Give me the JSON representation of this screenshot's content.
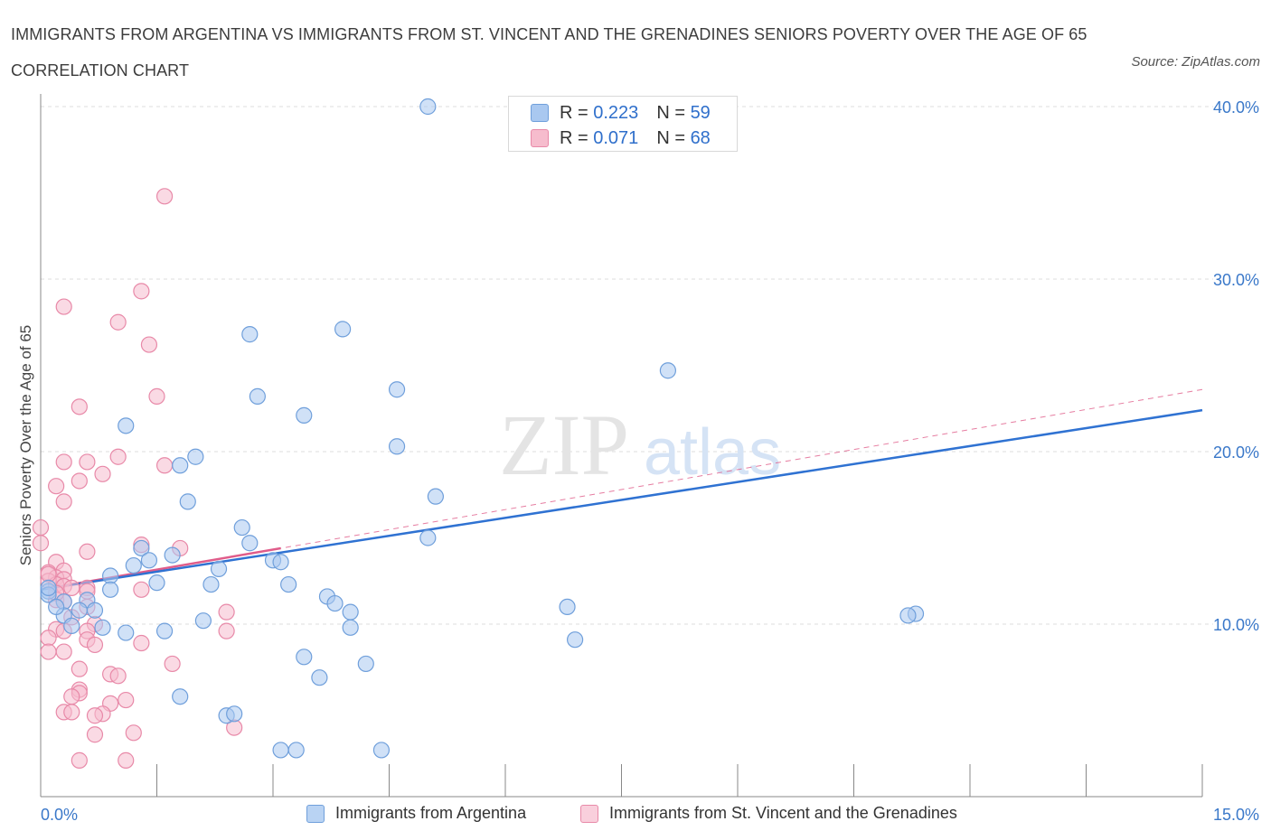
{
  "title": "IMMIGRANTS FROM ARGENTINA VS IMMIGRANTS FROM ST. VINCENT AND THE GRENADINES SENIORS POVERTY OVER THE AGE OF 65 CORRELATION CHART",
  "source": "Source: ZipAtlas.com",
  "watermark": {
    "zip": "ZIP",
    "atlas": "atlas"
  },
  "legend_top": [
    {
      "r_label": "R =",
      "r_value": "0.223",
      "n_label": "N =",
      "n_value": "59"
    },
    {
      "r_label": "R =",
      "r_value": "0.071",
      "n_label": "N =",
      "n_value": "68"
    }
  ],
  "colors": {
    "blue_fill": "#a9c8f0",
    "blue_stroke": "#6f9fdb",
    "blue_line": "#2f72d2",
    "pink_fill": "#f6bccd",
    "pink_stroke": "#e889a8",
    "pink_line": "#e05c8a",
    "axis_label": "#3a78c9",
    "grid": "#dcdcdc"
  },
  "chart_data": {
    "type": "scatter",
    "title": "IMMIGRANTS FROM ARGENTINA VS IMMIGRANTS FROM ST. VINCENT AND THE GRENADINES SENIORS POVERTY OVER THE AGE OF 65 CORRELATION CHART",
    "xlabel": "",
    "ylabel": "Seniors Poverty Over the Age of 65",
    "xlim": [
      0,
      15
    ],
    "ylim": [
      0,
      40
    ],
    "x_tick_labels": [
      "0.0%",
      "15.0%"
    ],
    "y_ticks": [
      10,
      20,
      30,
      40
    ],
    "y_tick_labels": [
      "10.0%",
      "20.0%",
      "30.0%",
      "40.0%"
    ],
    "grid": true,
    "legend_position": "top-center",
    "series": [
      {
        "name": "Immigrants from Argentina",
        "color": "blue",
        "r": 0.223,
        "n": 59,
        "trend": {
          "x": [
            0,
            15
          ],
          "y": [
            12.0,
            22.4
          ],
          "style": "solid"
        },
        "points": [
          [
            5.0,
            40.0
          ],
          [
            3.9,
            27.1
          ],
          [
            2.7,
            26.8
          ],
          [
            8.1,
            24.7
          ],
          [
            4.6,
            23.6
          ],
          [
            2.8,
            23.2
          ],
          [
            3.4,
            22.1
          ],
          [
            1.1,
            21.5
          ],
          [
            4.6,
            20.3
          ],
          [
            2.0,
            19.7
          ],
          [
            1.8,
            19.2
          ],
          [
            5.1,
            17.4
          ],
          [
            1.9,
            17.1
          ],
          [
            2.6,
            15.6
          ],
          [
            2.7,
            14.7
          ],
          [
            5.0,
            15.0
          ],
          [
            1.3,
            14.4
          ],
          [
            1.7,
            14.0
          ],
          [
            1.4,
            13.7
          ],
          [
            3.0,
            13.7
          ],
          [
            3.1,
            13.6
          ],
          [
            1.2,
            13.4
          ],
          [
            2.3,
            13.2
          ],
          [
            0.9,
            12.8
          ],
          [
            1.5,
            12.4
          ],
          [
            2.2,
            12.3
          ],
          [
            3.2,
            12.3
          ],
          [
            0.9,
            12.0
          ],
          [
            0.1,
            11.9
          ],
          [
            0.1,
            11.7
          ],
          [
            0.3,
            11.3
          ],
          [
            0.6,
            11.4
          ],
          [
            3.7,
            11.6
          ],
          [
            3.8,
            11.2
          ],
          [
            6.8,
            11.0
          ],
          [
            4.0,
            10.7
          ],
          [
            0.5,
            10.8
          ],
          [
            0.7,
            10.8
          ],
          [
            0.3,
            10.5
          ],
          [
            11.3,
            10.6
          ],
          [
            11.2,
            10.5
          ],
          [
            2.1,
            10.2
          ],
          [
            0.4,
            9.9
          ],
          [
            0.8,
            9.8
          ],
          [
            4.0,
            9.8
          ],
          [
            1.1,
            9.5
          ],
          [
            1.6,
            9.6
          ],
          [
            6.9,
            9.1
          ],
          [
            4.2,
            7.7
          ],
          [
            3.4,
            8.1
          ],
          [
            3.6,
            6.9
          ],
          [
            1.8,
            5.8
          ],
          [
            2.4,
            4.7
          ],
          [
            2.5,
            4.8
          ],
          [
            3.1,
            2.7
          ],
          [
            3.3,
            2.7
          ],
          [
            4.4,
            2.7
          ],
          [
            0.1,
            12.1
          ],
          [
            0.2,
            11.0
          ]
        ]
      },
      {
        "name": "Immigrants from St. Vincent and the Grenadines",
        "color": "pink",
        "r": 0.071,
        "n": 68,
        "trend": {
          "x": [
            0,
            15
          ],
          "y": [
            12.0,
            23.6
          ],
          "style": "dashed",
          "solid_x": [
            0,
            3.1
          ]
        },
        "points": [
          [
            1.6,
            34.8
          ],
          [
            1.3,
            29.3
          ],
          [
            0.3,
            28.4
          ],
          [
            1.0,
            27.5
          ],
          [
            1.4,
            26.2
          ],
          [
            1.5,
            23.2
          ],
          [
            0.5,
            22.6
          ],
          [
            1.0,
            19.7
          ],
          [
            0.3,
            19.4
          ],
          [
            0.6,
            19.4
          ],
          [
            1.6,
            19.2
          ],
          [
            0.8,
            18.7
          ],
          [
            0.2,
            18.0
          ],
          [
            0.5,
            18.3
          ],
          [
            0.3,
            17.1
          ],
          [
            0.0,
            15.6
          ],
          [
            0.0,
            14.7
          ],
          [
            1.3,
            14.6
          ],
          [
            1.8,
            14.4
          ],
          [
            0.6,
            14.2
          ],
          [
            0.2,
            13.6
          ],
          [
            0.3,
            13.1
          ],
          [
            0.1,
            13.0
          ],
          [
            0.2,
            12.7
          ],
          [
            0.3,
            12.6
          ],
          [
            0.1,
            12.5
          ],
          [
            0.2,
            12.3
          ],
          [
            0.3,
            12.2
          ],
          [
            0.4,
            12.1
          ],
          [
            0.6,
            12.1
          ],
          [
            1.3,
            12.0
          ],
          [
            0.6,
            11.9
          ],
          [
            0.2,
            11.4
          ],
          [
            0.3,
            11.3
          ],
          [
            0.6,
            11.0
          ],
          [
            2.4,
            10.7
          ],
          [
            0.4,
            10.4
          ],
          [
            0.7,
            10.0
          ],
          [
            0.2,
            9.7
          ],
          [
            0.3,
            9.6
          ],
          [
            0.6,
            9.6
          ],
          [
            2.4,
            9.6
          ],
          [
            0.1,
            9.2
          ],
          [
            0.6,
            9.1
          ],
          [
            1.3,
            8.9
          ],
          [
            0.7,
            8.8
          ],
          [
            0.3,
            8.4
          ],
          [
            0.1,
            8.4
          ],
          [
            1.7,
            7.7
          ],
          [
            0.5,
            7.4
          ],
          [
            0.9,
            7.1
          ],
          [
            1.0,
            7.0
          ],
          [
            0.5,
            6.2
          ],
          [
            0.5,
            6.0
          ],
          [
            0.4,
            5.8
          ],
          [
            1.1,
            5.6
          ],
          [
            0.9,
            5.4
          ],
          [
            0.3,
            4.9
          ],
          [
            0.4,
            4.9
          ],
          [
            0.8,
            4.8
          ],
          [
            0.7,
            4.7
          ],
          [
            2.5,
            4.0
          ],
          [
            1.2,
            3.7
          ],
          [
            0.7,
            3.6
          ],
          [
            0.5,
            2.1
          ],
          [
            1.1,
            2.1
          ],
          [
            0.1,
            12.9
          ],
          [
            0.2,
            11.8
          ]
        ]
      }
    ]
  },
  "legend_bottom": [
    {
      "label": "Immigrants from Argentina"
    },
    {
      "label": "Immigrants from St. Vincent and the Grenadines"
    }
  ]
}
